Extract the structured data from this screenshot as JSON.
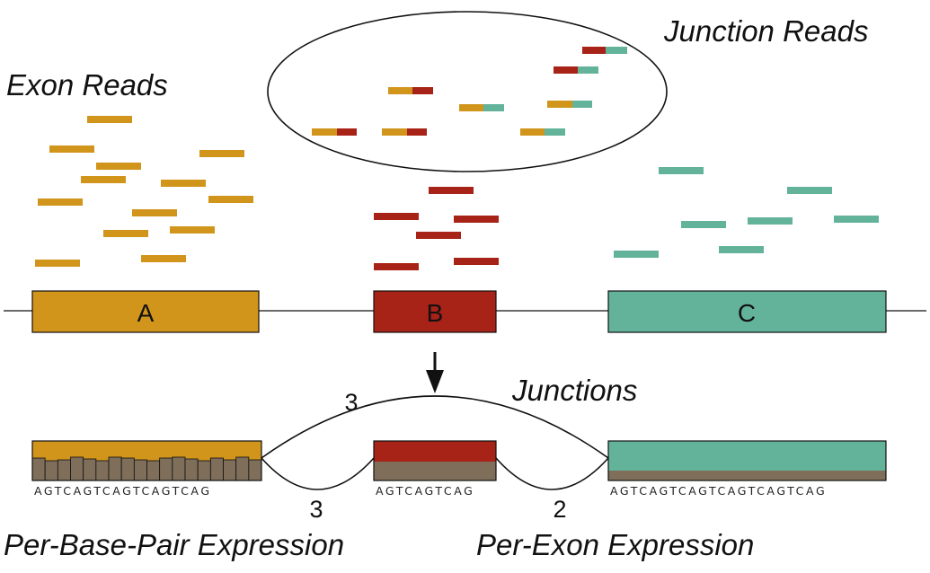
{
  "labels": {
    "exon_reads": "Exon Reads",
    "junction_reads": "Junction Reads",
    "junctions": "Junctions",
    "per_base": "Per-Base-Pair Expression",
    "per_exon": "Per-Exon Expression"
  },
  "colors": {
    "A": "#d2951c",
    "B": "#a72217",
    "C": "#63b39b",
    "coverage": "#7e6e5a"
  },
  "exons": [
    {
      "id": "A",
      "label": "A"
    },
    {
      "id": "B",
      "label": "B"
    },
    {
      "id": "C",
      "label": "C"
    }
  ],
  "junction_counts": {
    "A_C": "3",
    "A_B": "3",
    "B_C": "2"
  },
  "sequences": {
    "A": "AGTCAGTCAGTCAGTCAG",
    "B": "AGTCAGTCAG",
    "C": "AGTCAGTCAGTCAGTCAGTCAG"
  }
}
